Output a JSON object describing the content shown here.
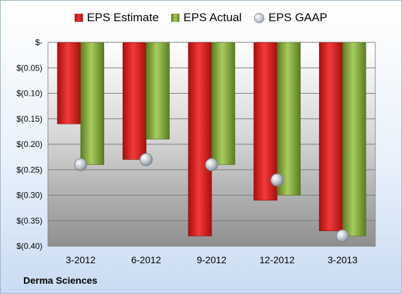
{
  "chart_data": {
    "type": "bar",
    "categories": [
      "3-2012",
      "6-2012",
      "9-2012",
      "12-2012",
      "3-2013"
    ],
    "series": [
      {
        "name": "EPS Estimate",
        "type": "bar",
        "color": "#d42020",
        "values": [
          -0.16,
          -0.23,
          -0.38,
          -0.31,
          -0.37
        ]
      },
      {
        "name": "EPS Actual",
        "type": "bar",
        "color": "#8db33f",
        "values": [
          -0.24,
          -0.19,
          -0.24,
          -0.3,
          -0.38
        ]
      },
      {
        "name": "EPS GAAP",
        "type": "scatter",
        "color": "#b9c0c8",
        "values": [
          -0.24,
          -0.23,
          -0.24,
          -0.27,
          -0.38
        ]
      }
    ],
    "yticks": [
      "$-",
      "$(0.05)",
      "$(0.10)",
      "$(0.15)",
      "$(0.20)",
      "$(0.25)",
      "$(0.30)",
      "$(0.35)",
      "$(0.40)"
    ],
    "ylim": [
      -0.4,
      0
    ],
    "grid": true,
    "legend": "top-center"
  },
  "footer": {
    "company": "Derma Sciences"
  }
}
